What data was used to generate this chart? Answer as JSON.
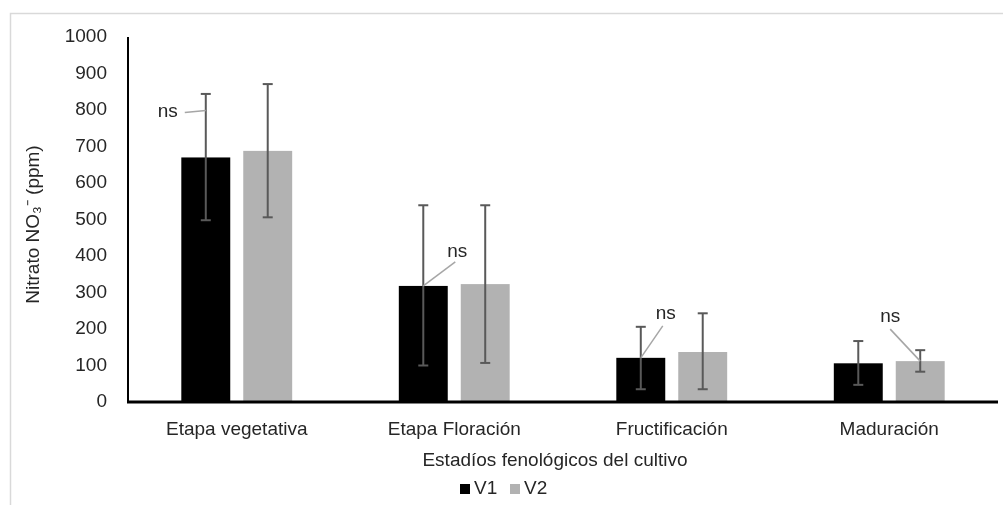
{
  "chart_data": {
    "type": "bar",
    "xlabel": "Estadíos fenológicos del cultivo",
    "ylabel": "Nitrato NO₃⁻ (ppm)",
    "categories": [
      "Etapa vegetativa",
      "Etapa Floración",
      "Fructificación",
      "Maduración"
    ],
    "series": [
      {
        "name": "V1",
        "color": "#000000",
        "values": [
          670,
          318,
          121,
          106
        ],
        "errors": [
          [
            498,
            844
          ],
          [
            100,
            539
          ],
          [
            35,
            206
          ],
          [
            47,
            167
          ]
        ]
      },
      {
        "name": "V2",
        "color": "#b2b2b2",
        "values": [
          688,
          323,
          137,
          112
        ],
        "errors": [
          [
            506,
            871
          ],
          [
            107,
            539
          ],
          [
            35,
            243
          ],
          [
            83,
            142
          ]
        ]
      }
    ],
    "ylim": [
      0,
      1000
    ],
    "yticks": [
      0,
      100,
      200,
      300,
      400,
      500,
      600,
      700,
      800,
      900,
      1000
    ],
    "legend": "bottom",
    "annotations": [
      "ns",
      "ns",
      "ns",
      "ns"
    ]
  }
}
